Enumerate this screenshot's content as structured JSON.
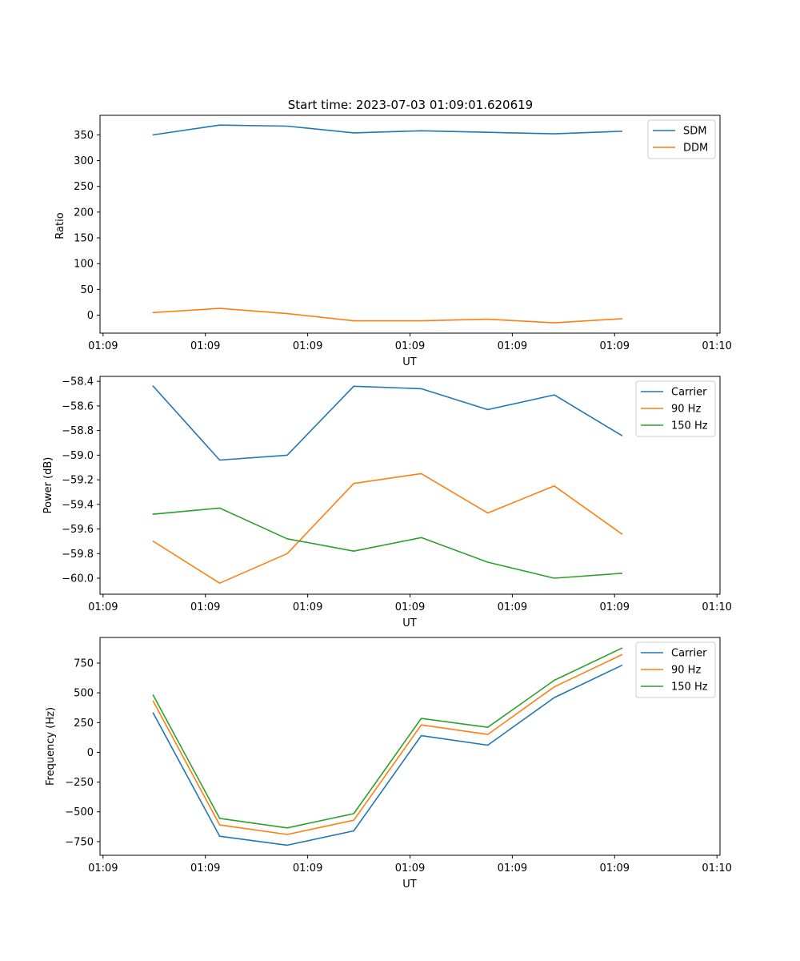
{
  "title": "Start time: 2023-07-03 01:09:01.620619",
  "colors": {
    "blue": "#1f77b4",
    "orange": "#ff7f0e",
    "green": "#2ca02c"
  },
  "x_ticks": [
    {
      "x": 0,
      "label": "01:09"
    },
    {
      "x": 1,
      "label": "01:09"
    },
    {
      "x": 2,
      "label": "01:09"
    },
    {
      "x": 3,
      "label": "01:09"
    },
    {
      "x": 4,
      "label": "01:09"
    },
    {
      "x": 5,
      "label": "01:09"
    },
    {
      "x": 6,
      "label": "01:10"
    }
  ],
  "chart_data": [
    {
      "type": "line",
      "xlabel": "UT",
      "ylabel": "Ratio",
      "xlim": [
        -0.03,
        6.03
      ],
      "ylim": [
        -35,
        388
      ],
      "yticks": [
        {
          "v": 0,
          "label": "0"
        },
        {
          "v": 50,
          "label": "50"
        },
        {
          "v": 100,
          "label": "100"
        },
        {
          "v": 150,
          "label": "150"
        },
        {
          "v": 200,
          "label": "200"
        },
        {
          "v": 250,
          "label": "250"
        },
        {
          "v": 300,
          "label": "300"
        },
        {
          "v": 350,
          "label": "350"
        }
      ],
      "x": [
        0.49,
        1.14,
        1.8,
        2.45,
        3.11,
        3.76,
        4.41,
        5.07
      ],
      "series": [
        {
          "name": "SDM",
          "color": "#1f77b4",
          "values": [
            350,
            369,
            367,
            354,
            358,
            355,
            352,
            357
          ]
        },
        {
          "name": "DDM",
          "color": "#ff7f0e",
          "values": [
            5,
            13,
            3,
            -11,
            -11,
            -8,
            -15,
            -7
          ]
        }
      ]
    },
    {
      "type": "line",
      "xlabel": "UT",
      "ylabel": "Power (dB)",
      "xlim": [
        -0.03,
        6.03
      ],
      "ylim": [
        -60.13,
        -58.36
      ],
      "yticks": [
        {
          "v": -60.0,
          "label": "−60.0"
        },
        {
          "v": -59.8,
          "label": "−59.8"
        },
        {
          "v": -59.6,
          "label": "−59.6"
        },
        {
          "v": -59.4,
          "label": "−59.4"
        },
        {
          "v": -59.2,
          "label": "−59.2"
        },
        {
          "v": -59.0,
          "label": "−59.0"
        },
        {
          "v": -58.8,
          "label": "−58.8"
        },
        {
          "v": -58.6,
          "label": "−58.6"
        },
        {
          "v": -58.4,
          "label": "−58.4"
        }
      ],
      "x": [
        0.49,
        1.14,
        1.8,
        2.45,
        3.11,
        3.76,
        4.41,
        5.07
      ],
      "series": [
        {
          "name": "Carrier",
          "color": "#1f77b4",
          "values": [
            -58.44,
            -59.04,
            -59.0,
            -58.44,
            -58.46,
            -58.63,
            -58.51,
            -58.84
          ]
        },
        {
          "name": "90 Hz",
          "color": "#ff7f0e",
          "values": [
            -59.7,
            -60.04,
            -59.8,
            -59.23,
            -59.15,
            -59.47,
            -59.25,
            -59.64
          ]
        },
        {
          "name": "150 Hz",
          "color": "#2ca02c",
          "values": [
            -59.48,
            -59.43,
            -59.68,
            -59.78,
            -59.67,
            -59.87,
            -60.0,
            -59.96
          ]
        }
      ]
    },
    {
      "type": "line",
      "xlabel": "UT",
      "ylabel": "Frequency (Hz)",
      "xlim": [
        -0.03,
        6.03
      ],
      "ylim": [
        -865,
        965
      ],
      "yticks": [
        {
          "v": -750,
          "label": "−750"
        },
        {
          "v": -500,
          "label": "−500"
        },
        {
          "v": -250,
          "label": "−250"
        },
        {
          "v": 0,
          "label": "0"
        },
        {
          "v": 250,
          "label": "250"
        },
        {
          "v": 500,
          "label": "500"
        },
        {
          "v": 750,
          "label": "750"
        }
      ],
      "x": [
        0.49,
        1.14,
        1.8,
        2.45,
        3.11,
        3.76,
        4.41,
        5.07
      ],
      "series": [
        {
          "name": "Carrier",
          "color": "#1f77b4",
          "values": [
            330,
            -705,
            -780,
            -660,
            140,
            60,
            460,
            730
          ]
        },
        {
          "name": "90 Hz",
          "color": "#ff7f0e",
          "values": [
            430,
            -610,
            -690,
            -570,
            230,
            150,
            550,
            820
          ]
        },
        {
          "name": "150 Hz",
          "color": "#2ca02c",
          "values": [
            480,
            -555,
            -635,
            -515,
            285,
            210,
            605,
            875
          ]
        }
      ]
    }
  ]
}
